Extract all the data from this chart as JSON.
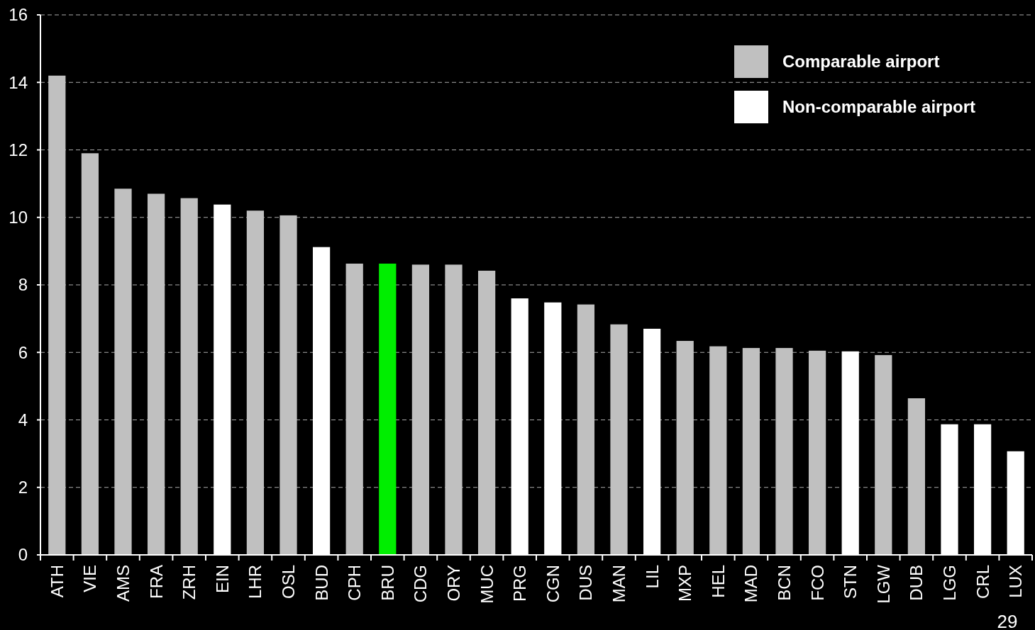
{
  "chart_data": {
    "type": "bar",
    "categories": [
      "ATH",
      "VIE",
      "AMS",
      "FRA",
      "ZRH",
      "EIN",
      "LHR",
      "OSL",
      "BUD",
      "CPH",
      "BRU",
      "CDG",
      "ORY",
      "MUC",
      "PRG",
      "CGN",
      "DUS",
      "MAN",
      "LIL",
      "MXP",
      "HEL",
      "MAD",
      "BCN",
      "FCO",
      "STN",
      "LGW",
      "DUB",
      "LGG",
      "CRL",
      "LUX"
    ],
    "series": [
      {
        "name": "Comparable airport",
        "color": "#c0c0c0",
        "values": [
          14.2,
          11.9,
          10.85,
          10.7,
          10.57,
          null,
          10.2,
          10.06,
          null,
          8.63,
          8.63,
          8.6,
          8.6,
          8.42,
          null,
          null,
          7.42,
          6.83,
          null,
          6.34,
          6.18,
          6.13,
          6.13,
          6.05,
          null,
          5.92,
          4.64,
          null,
          null,
          null
        ],
        "colors": [
          "#c0c0c0",
          "#c0c0c0",
          "#c0c0c0",
          "#c0c0c0",
          "#c0c0c0",
          null,
          "#c0c0c0",
          "#c0c0c0",
          null,
          "#c0c0c0",
          "#00ee00",
          "#c0c0c0",
          "#c0c0c0",
          "#c0c0c0",
          null,
          null,
          "#c0c0c0",
          "#c0c0c0",
          null,
          "#c0c0c0",
          "#c0c0c0",
          "#c0c0c0",
          "#c0c0c0",
          "#c0c0c0",
          null,
          "#c0c0c0",
          "#c0c0c0",
          null,
          null,
          null
        ]
      },
      {
        "name": "Non-comparable airport",
        "color": "#ffffff",
        "values": [
          null,
          null,
          null,
          null,
          null,
          10.38,
          null,
          null,
          9.12,
          null,
          null,
          null,
          null,
          null,
          7.6,
          7.48,
          null,
          null,
          6.7,
          null,
          null,
          null,
          null,
          null,
          6.03,
          null,
          null,
          3.87,
          3.87,
          3.07
        ]
      }
    ],
    "ylim": [
      0,
      16
    ],
    "yticks": [
      0,
      2,
      4,
      6,
      8,
      10,
      12,
      14,
      16
    ],
    "grid": "y",
    "legend": "top right",
    "annotations": [
      "29"
    ]
  }
}
